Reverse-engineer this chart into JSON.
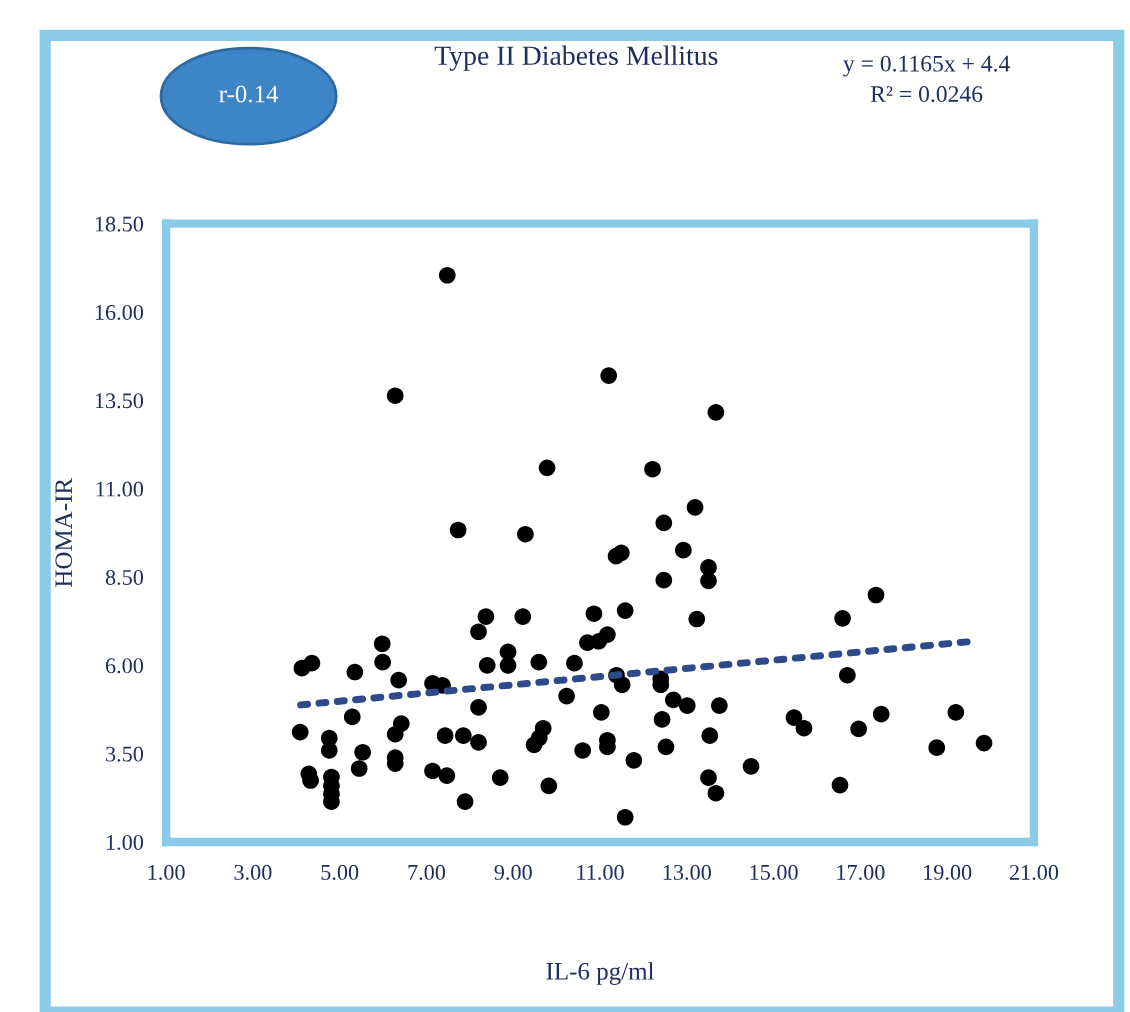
{
  "chart_data": {
    "type": "scatter",
    "title": "Type II Diabetes Mellitus",
    "xlabel": "IL-6 pg/ml",
    "ylabel": "HOMA-IR",
    "annotations": [
      "r-0.14",
      "y = 0.1165x + 4.4",
      "R² = 0.0246"
    ],
    "series": [
      {
        "color": "#000000",
        "marker": "circle",
        "x": [
          7.48,
          6.28,
          9.78,
          7.73,
          9.28,
          8.37,
          9.22,
          8.2,
          5.98,
          4.13,
          4.36,
          5.99,
          5.35,
          8.4,
          8.88,
          8.88,
          9.59,
          10.41,
          6.36,
          7.14,
          7.37,
          10.23,
          8.2,
          5.29,
          6.42,
          6.28,
          4.09,
          4.76,
          7.43,
          7.85,
          8.2,
          9.69,
          9.6,
          9.48,
          10.6,
          4.76,
          5.53,
          6.28,
          6.28,
          4.29,
          4.33,
          4.81,
          4.81,
          4.81,
          4.81,
          5.45,
          7.14,
          7.47,
          7.89,
          8.7,
          9.82,
          11.2,
          13.67,
          12.21,
          13.19,
          12.47,
          12.92,
          11.37,
          11.49,
          13.5,
          13.5,
          12.47,
          11.58,
          10.86,
          13.23,
          10.71,
          10.97,
          11.17,
          16.59,
          17.36,
          16.7,
          11.38,
          11.51,
          12.4,
          12.4,
          12.69,
          13.01,
          13.75,
          11.03,
          12.43,
          13.53,
          15.47,
          15.7,
          16.96,
          17.48,
          19.2,
          11.17,
          11.17,
          11.78,
          12.52,
          13.5,
          13.67,
          14.48,
          16.53,
          18.76,
          19.85,
          11.58
        ],
        "values": [
          17.04,
          13.63,
          11.59,
          9.83,
          9.71,
          7.38,
          7.38,
          6.95,
          6.61,
          5.92,
          6.06,
          6.09,
          5.81,
          6.0,
          6.38,
          6.0,
          6.09,
          6.06,
          5.58,
          5.49,
          5.43,
          5.13,
          4.81,
          4.54,
          4.35,
          4.05,
          4.11,
          3.94,
          4.01,
          4.01,
          3.82,
          4.22,
          3.95,
          3.75,
          3.59,
          3.59,
          3.54,
          3.39,
          3.22,
          2.93,
          2.74,
          2.84,
          2.59,
          2.36,
          2.14,
          3.08,
          3.01,
          2.88,
          2.14,
          2.82,
          2.59,
          14.2,
          13.16,
          11.55,
          10.47,
          10.03,
          9.26,
          9.09,
          9.18,
          8.77,
          8.39,
          8.41,
          7.55,
          7.46,
          7.31,
          6.64,
          6.68,
          6.87,
          7.33,
          7.99,
          5.72,
          5.72,
          5.45,
          5.62,
          5.45,
          5.02,
          4.86,
          4.86,
          4.67,
          4.47,
          4.01,
          4.52,
          4.22,
          4.2,
          4.62,
          4.67,
          3.88,
          3.69,
          3.31,
          3.69,
          2.82,
          2.38,
          3.14,
          2.61,
          3.67,
          3.8,
          1.7
        ]
      },
      {
        "type": "line",
        "color": "#2e4a8a",
        "line_style": "dotted",
        "x": [
          4.1,
          19.6
        ],
        "values": [
          4.88,
          6.68
        ]
      }
    ],
    "grid": false,
    "xlim": [
      1,
      21
    ],
    "ylim": [
      1,
      18.5
    ],
    "xticks": [
      {
        "value": 1,
        "label": "1.00"
      },
      {
        "value": 3,
        "label": "3.00"
      },
      {
        "value": 5,
        "label": "5.00"
      },
      {
        "value": 7,
        "label": "7.00"
      },
      {
        "value": 9,
        "label": "9.00"
      },
      {
        "value": 11,
        "label": "11.00"
      },
      {
        "value": 13,
        "label": "13.00"
      },
      {
        "value": 15,
        "label": "15.00"
      },
      {
        "value": 17,
        "label": "17.00"
      },
      {
        "value": 19,
        "label": "19.00"
      },
      {
        "value": 21,
        "label": "21.00"
      }
    ],
    "yticks": [
      {
        "value": 1,
        "label": "1.00"
      },
      {
        "value": 3.5,
        "label": "3.50"
      },
      {
        "value": 6,
        "label": "6.00"
      },
      {
        "value": 8.5,
        "label": "8.50"
      },
      {
        "value": 11,
        "label": "11.00"
      },
      {
        "value": 13.5,
        "label": "13.50"
      },
      {
        "value": 16,
        "label": "16.00"
      },
      {
        "value": 18.5,
        "label": "18.50"
      }
    ]
  }
}
